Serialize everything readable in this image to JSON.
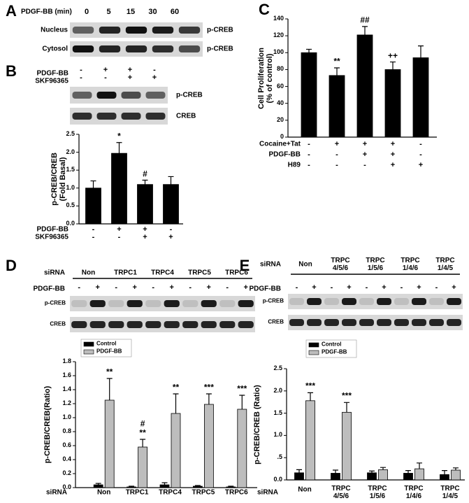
{
  "panel_labels": [
    "A",
    "B",
    "C",
    "D",
    "E"
  ],
  "blot_a": {
    "treatment": "PDGF-BB (min)",
    "times": [
      0,
      5,
      15,
      30,
      60
    ],
    "rows": [
      "Nucleus",
      "Cytosol"
    ],
    "targets": [
      "p-CREB",
      "p-CREB"
    ]
  },
  "blot_b": {
    "conditions": [
      {
        "name": "PDGF-BB",
        "signs": [
          "-",
          "+",
          "+",
          "-"
        ]
      },
      {
        "name": "SKF96365",
        "signs": [
          "-",
          "-",
          "+",
          "+"
        ]
      }
    ],
    "targets": [
      "p-CREB",
      "CREB"
    ]
  },
  "blot_d": {
    "group_label": "siRNA",
    "groups": [
      "Non",
      "TRPC1",
      "TRPC4",
      "TRPC5",
      "TRPC6"
    ],
    "treatment": "PDGF-BB",
    "signs": [
      "-",
      "+",
      "-",
      "+",
      "-",
      "+",
      "-",
      "+",
      "-",
      "+"
    ],
    "targets": [
      "p-CREB",
      "CREB"
    ]
  },
  "blot_e": {
    "group_label": "siRNA",
    "groups": [
      "Non",
      "TRPC\n4/5/6",
      "TRPC\n1/5/6",
      "TRPC\n1/4/6",
      "TRPC\n1/4/5"
    ],
    "treatment": "PDGF-BB",
    "signs": [
      "-",
      "+",
      "-",
      "+",
      "-",
      "+",
      "-",
      "+",
      "-",
      "+"
    ],
    "targets": [
      "p-CREB",
      "CREB"
    ]
  },
  "chart_data": [
    {
      "type": "bar",
      "ylabel": "p-CREB/CREB\n(Fold Basal)",
      "color": "#000000",
      "values": [
        1.0,
        1.97,
        1.1,
        1.1
      ],
      "errors": [
        0.2,
        0.3,
        0.12,
        0.22
      ],
      "annotations": [
        null,
        [
          "*"
        ],
        [
          "#"
        ],
        null
      ],
      "ylim": [
        0,
        2.5
      ],
      "yticks": [
        {
          "value": 0,
          "label": "0.0"
        },
        0.5,
        {
          "value": 1,
          "label": "1.0"
        },
        1.5,
        {
          "value": 2,
          "label": "2.0"
        },
        2.5
      ],
      "conditions": [
        {
          "name": "PDGF-BB",
          "signs": [
            "-",
            "+",
            "+",
            "-"
          ]
        },
        {
          "name": "SKF96365",
          "signs": [
            "-",
            "-",
            "+",
            "+"
          ]
        }
      ]
    },
    {
      "type": "bar",
      "ylabel": "Cell Proliferation\n(% of control)",
      "color": "#000000",
      "values": [
        100,
        73,
        121,
        80,
        94
      ],
      "errors": [
        4,
        9,
        10,
        9,
        14
      ],
      "annotations": [
        null,
        [
          "**"
        ],
        [
          "##"
        ],
        [
          "++"
        ],
        null
      ],
      "ylim": [
        0,
        140
      ],
      "yticks": [
        0,
        20,
        40,
        60,
        80,
        100,
        120,
        140
      ],
      "conditions": [
        {
          "name": "Cocaine+Tat",
          "signs": [
            "-",
            "+",
            "+",
            "+",
            "-"
          ]
        },
        {
          "name": "PDGF-BB",
          "signs": [
            "-",
            "-",
            "+",
            "+",
            "-"
          ]
        },
        {
          "name": "H89",
          "signs": [
            "-",
            "-",
            "-",
            "+",
            "+"
          ]
        }
      ]
    },
    {
      "type": "grouped-bar",
      "ylabel": "p-CREB/CREB(Ratio)",
      "xlabel": "siRNA",
      "categories": [
        "Non",
        "TRPC1",
        "TRPC4",
        "TRPC5",
        "TRPC6"
      ],
      "series": [
        {
          "name": "Control",
          "color": "#000000",
          "values": [
            0.04,
            0.01,
            0.04,
            0.02,
            0.01
          ],
          "errors": [
            0.02,
            0.01,
            0.03,
            0.01,
            0.01
          ]
        },
        {
          "name": "PDGF-BB",
          "color": "#bdbdbd",
          "values": [
            1.25,
            0.58,
            1.06,
            1.19,
            1.12
          ],
          "errors": [
            0.31,
            0.11,
            0.28,
            0.15,
            0.2
          ],
          "annotations": [
            [
              "**"
            ],
            [
              "#",
              "**"
            ],
            [
              "**"
            ],
            [
              "***"
            ],
            [
              "***"
            ]
          ]
        }
      ],
      "ylim": [
        0,
        1.8
      ],
      "yticks": [
        {
          "value": 0,
          "label": "0.0"
        },
        0.2,
        0.4,
        0.6,
        0.8,
        {
          "value": 1,
          "label": "1.0"
        },
        1.2,
        1.4,
        1.6,
        1.8
      ]
    },
    {
      "type": "grouped-bar",
      "ylabel": "p-CREB/CREB (Ratio)",
      "xlabel": "siRNA",
      "categories": [
        "Non",
        "TRPC\n4/5/6",
        "TRPC\n1/5/6",
        "TRPC\n1/4/6",
        "TRPC\n1/4/5"
      ],
      "series": [
        {
          "name": "Control",
          "color": "#000000",
          "values": [
            0.16,
            0.15,
            0.16,
            0.15,
            0.12
          ],
          "errors": [
            0.07,
            0.07,
            0.04,
            0.06,
            0.09
          ]
        },
        {
          "name": "PDGF-BB",
          "color": "#bdbdbd",
          "values": [
            1.78,
            1.52,
            0.23,
            0.25,
            0.22
          ],
          "errors": [
            0.18,
            0.22,
            0.05,
            0.13,
            0.05
          ],
          "annotations": [
            [
              "***"
            ],
            [
              "***"
            ],
            null,
            null,
            null
          ]
        }
      ],
      "ylim": [
        0,
        2.5
      ],
      "yticks": [
        {
          "value": 0,
          "label": "0.0"
        },
        {
          "value": 0.5,
          "label": ".5"
        },
        {
          "value": 1,
          "label": "1.0"
        },
        1.5,
        {
          "value": 2,
          "label": "2.0"
        },
        2.5
      ]
    }
  ]
}
